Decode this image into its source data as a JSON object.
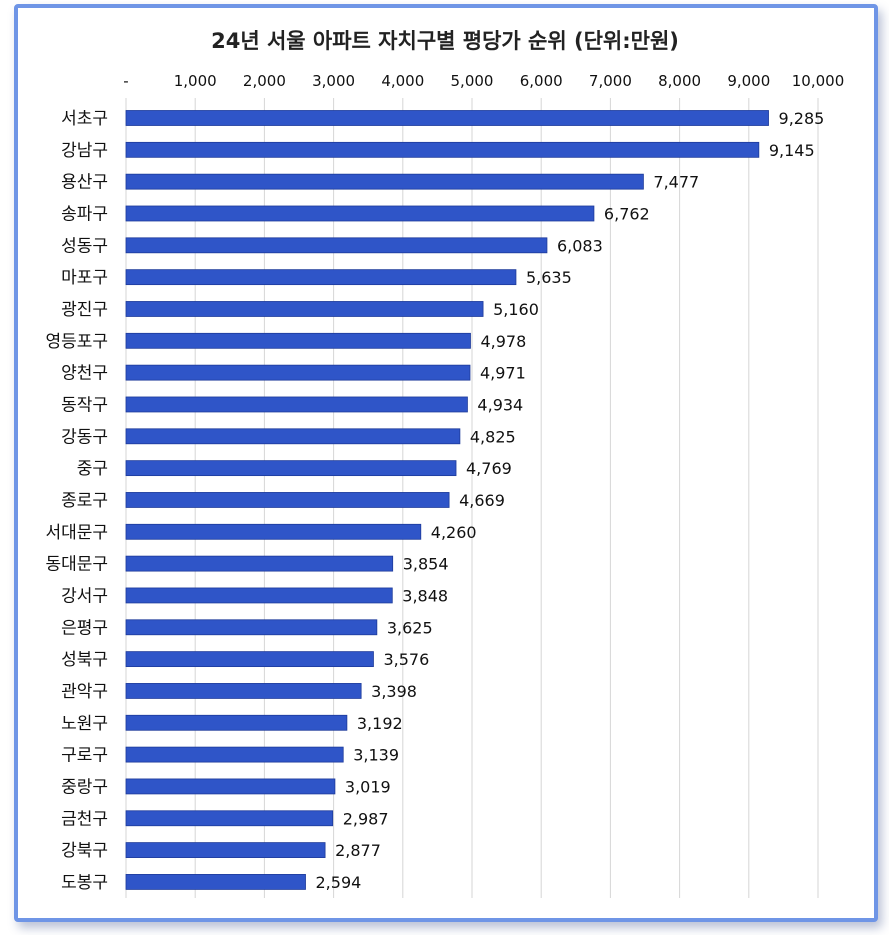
{
  "chart_data": {
    "type": "bar",
    "orientation": "horizontal",
    "title": "24년 서울 아파트 자치구별 평당가 순위 (단위:만원)",
    "xlabel": "",
    "ylabel": "",
    "xlim": [
      0,
      10000
    ],
    "x_ticks": [
      "-",
      "1,000",
      "2,000",
      "3,000",
      "4,000",
      "5,000",
      "6,000",
      "7,000",
      "8,000",
      "9,000",
      "10,000"
    ],
    "grid": true,
    "legend": "none",
    "bar_color": "#2f55c8",
    "categories": [
      "서초구",
      "강남구",
      "용산구",
      "송파구",
      "성동구",
      "마포구",
      "광진구",
      "영등포구",
      "양천구",
      "동작구",
      "강동구",
      "중구",
      "종로구",
      "서대문구",
      "동대문구",
      "강서구",
      "은평구",
      "성북구",
      "관악구",
      "노원구",
      "구로구",
      "중랑구",
      "금천구",
      "강북구",
      "도봉구"
    ],
    "values": [
      9285,
      9145,
      7477,
      6762,
      6083,
      5635,
      5160,
      4978,
      4971,
      4934,
      4825,
      4769,
      4669,
      4260,
      3854,
      3848,
      3625,
      3576,
      3398,
      3192,
      3139,
      3019,
      2987,
      2877,
      2594
    ],
    "value_labels": [
      "9,285",
      "9,145",
      "7,477",
      "6,762",
      "6,083",
      "5,635",
      "5,160",
      "4,978",
      "4,971",
      "4,934",
      "4,825",
      "4,769",
      "4,669",
      "4,260",
      "3,854",
      "3,848",
      "3,625",
      "3,576",
      "3,398",
      "3,192",
      "3,139",
      "3,019",
      "2,987",
      "2,877",
      "2,594"
    ]
  }
}
